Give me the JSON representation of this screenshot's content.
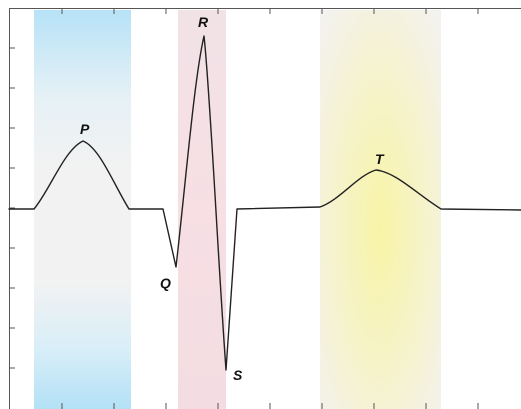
{
  "labels": {
    "p": "P",
    "q": "Q",
    "r": "R",
    "s": "S",
    "t": "T"
  },
  "colors": {
    "p_band": "#bfe6f8",
    "qrs_band": "#f6dfe3",
    "t_band": "#f6f3b8",
    "band_neutral": "#f1f1f1",
    "trace": "#222222",
    "axis": "#555555"
  }
}
